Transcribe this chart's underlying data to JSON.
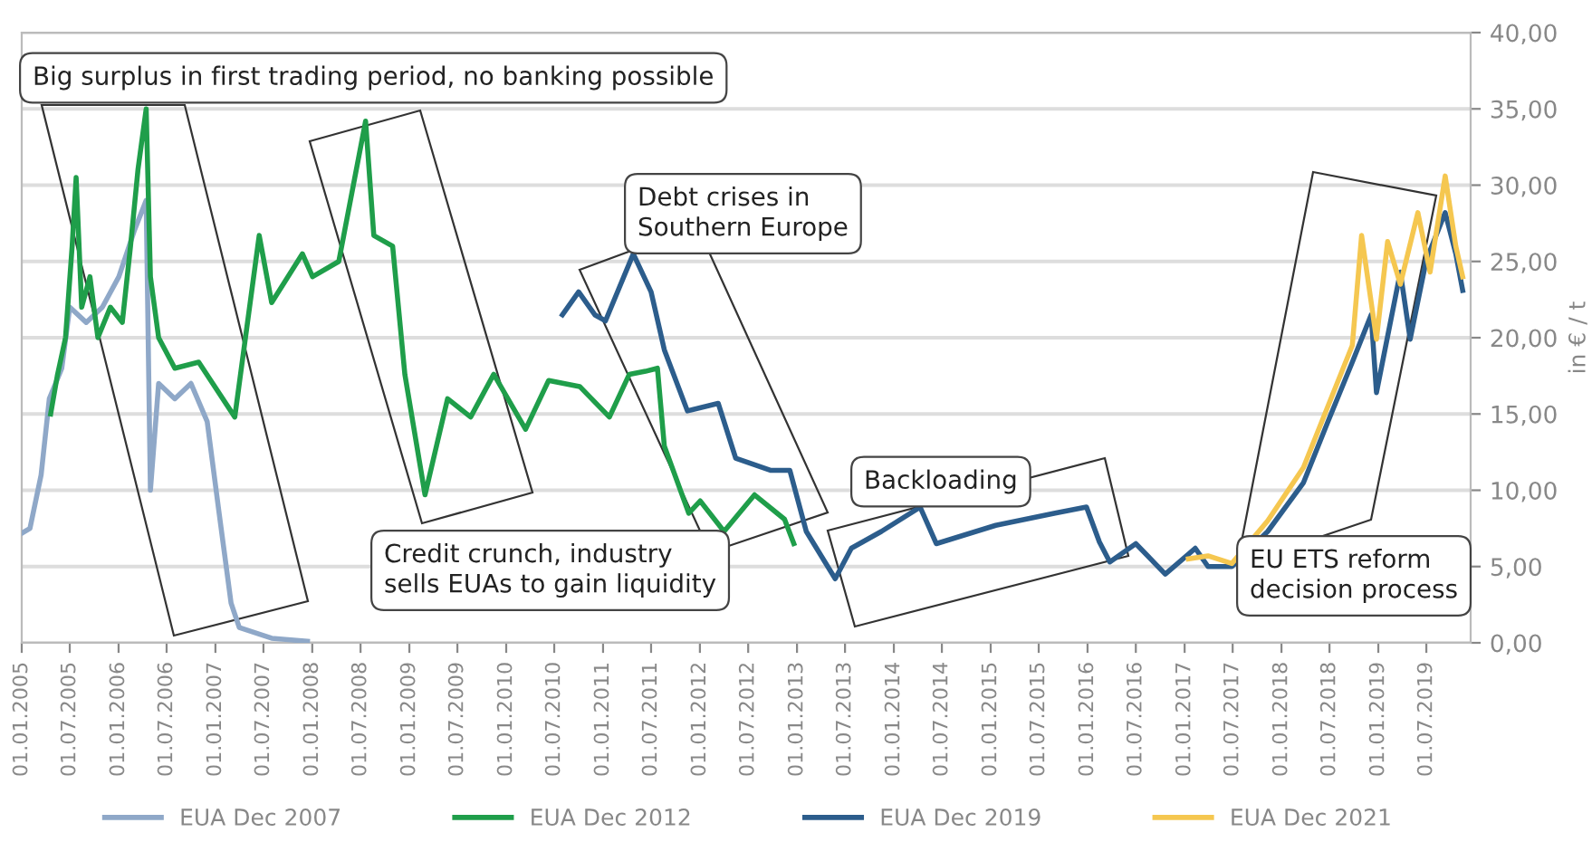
{
  "chart_data": {
    "type": "line",
    "ylabel": "in € / t",
    "annotations": [
      "Big surplus in first trading period, no banking possible",
      "Debt crises in\nSouthern Europe",
      "Credit crunch, industry\nsells EUAs to gain liquidity",
      "Backloading",
      "EU ETS reform\ndecision process"
    ],
    "series": [
      {
        "name": "EUA Dec 2007",
        "color": "#8fa8c8",
        "x": [
          "2005-01-03",
          "2005-02-01",
          "2005-03-15",
          "2005-04-15",
          "2005-06-01",
          "2005-07-01",
          "2005-09-01",
          "2005-11-01",
          "2006-01-02",
          "2006-03-01",
          "2006-04-15",
          "2006-05-01",
          "2006-06-01",
          "2006-08-01",
          "2006-10-01",
          "2006-12-01",
          "2007-01-15",
          "2007-03-01",
          "2007-04-01",
          "2007-08-01",
          "2007-12-14"
        ],
        "values": [
          7.2,
          7.5,
          11,
          16,
          18,
          22,
          21,
          22,
          24,
          27,
          29,
          10,
          17,
          16,
          17,
          14.5,
          8.5,
          2.6,
          1,
          0.3,
          0.1
        ]
      },
      {
        "name": "EUA Dec 2012",
        "color": "#1f9e4a",
        "x": [
          "2005-04-20",
          "2005-05-15",
          "2005-06-15",
          "2005-07-10",
          "2005-07-25",
          "2005-08-15",
          "2005-09-15",
          "2005-10-15",
          "2005-12-01",
          "2006-01-15",
          "2006-02-15",
          "2006-03-15",
          "2006-04-15",
          "2006-05-01",
          "2006-06-01",
          "2006-08-01",
          "2006-10-30",
          "2007-03-15",
          "2007-06-15",
          "2007-08-01",
          "2007-11-25",
          "2008-01-02",
          "2008-04-10",
          "2008-07-20",
          "2008-08-20",
          "2008-10-30",
          "2008-12-15",
          "2009-03-01",
          "2009-05-25",
          "2009-08-20",
          "2009-11-15",
          "2010-03-15",
          "2010-06-10",
          "2010-10-05",
          "2011-01-25",
          "2011-04-10",
          "2011-06-10",
          "2011-07-25",
          "2011-08-20",
          "2011-11-20",
          "2012-01-02",
          "2012-04-01",
          "2012-07-25",
          "2012-11-15",
          "2012-12-20"
        ],
        "values": [
          15,
          17.5,
          20,
          26,
          30.5,
          22,
          24,
          20,
          22,
          21,
          26,
          31,
          35,
          24,
          20,
          18,
          18.4,
          14.8,
          26.7,
          22.3,
          25.5,
          24,
          25,
          34.2,
          26.7,
          26,
          17.6,
          9.7,
          16,
          14.8,
          17.6,
          14,
          17.2,
          16.8,
          14.8,
          17.6,
          17.8,
          18,
          12.9,
          8.5,
          9.3,
          7.3,
          9.7,
          8.1,
          6.5
        ]
      },
      {
        "name": "EUA Dec 2019",
        "color": "#2c5d8c",
        "x": [
          "2010-08-01",
          "2010-10-01",
          "2010-12-01",
          "2011-01-10",
          "2011-04-25",
          "2011-07-01",
          "2011-08-20",
          "2011-11-15",
          "2012-03-10",
          "2012-05-15",
          "2012-09-25",
          "2012-12-05",
          "2013-02-05",
          "2013-05-25",
          "2013-07-25",
          "2013-11-15",
          "2014-04-10",
          "2014-06-10",
          "2015-01-20",
          "2015-09-01",
          "2015-12-28",
          "2016-02-15",
          "2016-03-25",
          "2016-07-01",
          "2016-10-20",
          "2017-02-10",
          "2017-03-30",
          "2017-06-28",
          "2017-11-10",
          "2018-03-25",
          "2018-06-25",
          "2018-09-25",
          "2018-12-05",
          "2018-12-25",
          "2019-03-25",
          "2019-05-01",
          "2019-07-01",
          "2019-09-10",
          "2019-10-20",
          "2019-11-15"
        ],
        "values": [
          21.5,
          23,
          21.5,
          21.1,
          25.5,
          23,
          19.2,
          15.2,
          15.7,
          12.1,
          11.3,
          11.3,
          7.3,
          4.2,
          6.2,
          7.3,
          8.9,
          6.5,
          7.7,
          8.5,
          8.9,
          6.6,
          5.3,
          6.5,
          4.5,
          6.2,
          5,
          5,
          7.3,
          10.5,
          14.5,
          18.4,
          21.5,
          16.4,
          24.3,
          19.9,
          25.1,
          28.2,
          25.5,
          23.1
        ]
      },
      {
        "name": "EUA Dec 2021",
        "color": "#f5c750",
        "x": [
          "2017-01-15",
          "2017-03-30",
          "2017-06-28",
          "2017-11-10",
          "2018-03-25",
          "2018-06-25",
          "2018-09-25",
          "2018-10-30",
          "2018-12-25",
          "2019-02-05",
          "2019-03-25",
          "2019-05-30",
          "2019-07-15",
          "2019-09-10",
          "2019-10-20",
          "2019-11-15"
        ],
        "values": [
          5.5,
          5.7,
          5.2,
          8,
          11.5,
          15.5,
          19.5,
          26.7,
          19.9,
          26.3,
          23.5,
          28.2,
          24.3,
          30.6,
          26,
          24
        ]
      }
    ],
    "xlim": [
      "2005-01-01",
      "2019-12-15"
    ],
    "xticks": [
      {
        "value": "2005-01-01",
        "label": "01.01.2005"
      },
      {
        "value": "2005-07-01",
        "label": "01.07.2005"
      },
      {
        "value": "2006-01-01",
        "label": "01.01.2006"
      },
      {
        "value": "2006-07-01",
        "label": "01.07.2006"
      },
      {
        "value": "2007-01-01",
        "label": "01.01.2007"
      },
      {
        "value": "2007-07-01",
        "label": "01.07.2007"
      },
      {
        "value": "2008-01-01",
        "label": "01.01.2008"
      },
      {
        "value": "2008-07-01",
        "label": "01.07.2008"
      },
      {
        "value": "2009-01-01",
        "label": "01.01.2009"
      },
      {
        "value": "2009-07-01",
        "label": "01.07.2009"
      },
      {
        "value": "2010-01-01",
        "label": "01.01.2010"
      },
      {
        "value": "2010-07-01",
        "label": "01.07.2010"
      },
      {
        "value": "2011-01-01",
        "label": "01.01.2011"
      },
      {
        "value": "2011-07-01",
        "label": "01.07.2011"
      },
      {
        "value": "2012-01-01",
        "label": "01.01.2012"
      },
      {
        "value": "2012-07-01",
        "label": "01.07.2012"
      },
      {
        "value": "2013-01-01",
        "label": "01.01.2013"
      },
      {
        "value": "2013-07-01",
        "label": "01.07.2013"
      },
      {
        "value": "2014-01-01",
        "label": "01.01.2014"
      },
      {
        "value": "2014-07-01",
        "label": "01.07.2014"
      },
      {
        "value": "2015-01-01",
        "label": "01.01.2015"
      },
      {
        "value": "2015-07-01",
        "label": "01.07.2015"
      },
      {
        "value": "2016-01-01",
        "label": "01.01.2016"
      },
      {
        "value": "2016-07-01",
        "label": "01.07.2016"
      },
      {
        "value": "2017-01-01",
        "label": "01.01.2017"
      },
      {
        "value": "2017-07-01",
        "label": "01.07.2017"
      },
      {
        "value": "2018-01-01",
        "label": "01.01.2018"
      },
      {
        "value": "2018-07-01",
        "label": "01.07.2018"
      },
      {
        "value": "2019-01-01",
        "label": "01.01.2019"
      },
      {
        "value": "2019-07-01",
        "label": "01.07.2019"
      }
    ],
    "ylim": [
      0,
      40
    ],
    "yticks": [
      {
        "value": 0,
        "label": "0,00"
      },
      {
        "value": 5,
        "label": "5,00"
      },
      {
        "value": 10,
        "label": "10,00"
      },
      {
        "value": 15,
        "label": "15,00"
      },
      {
        "value": 20,
        "label": "20,00"
      },
      {
        "value": 25,
        "label": "25,00"
      },
      {
        "value": 30,
        "label": "30,00"
      },
      {
        "value": 35,
        "label": "35,00"
      },
      {
        "value": 40,
        "label": "40,00"
      }
    ],
    "grid": "y",
    "legend": "bottom",
    "marker": "none",
    "line_style": "solid"
  }
}
